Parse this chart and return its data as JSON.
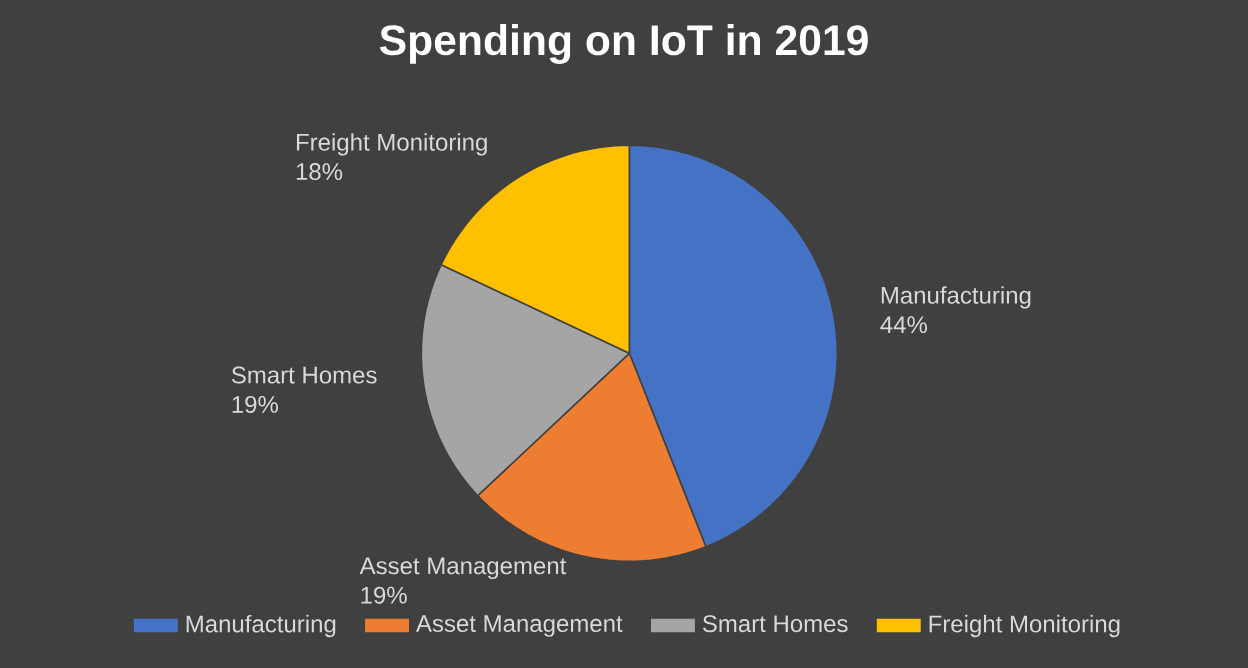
{
  "chart_data": {
    "type": "pie",
    "title": "Spending on IoT in 2019",
    "categories": [
      "Manufacturing",
      "Asset Management",
      "Smart Homes",
      "Freight Monitoring"
    ],
    "values": [
      44,
      19,
      19,
      18
    ],
    "value_labels": [
      "44%",
      "19%",
      "19%",
      "18%"
    ],
    "colors": [
      "#4472c4",
      "#ed7d31",
      "#a5a5a5",
      "#ffc000"
    ],
    "legend": "bottom"
  }
}
